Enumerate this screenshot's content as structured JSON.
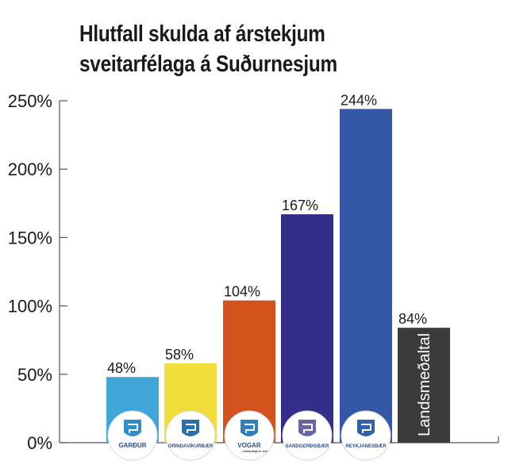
{
  "chart_data": {
    "type": "bar",
    "title": "Hlutfall skulda af árstekjum sveitarfélaga á Suðurnesjum",
    "title_line1": "Hlutfall skulda af árstekjum",
    "title_line2": "sveitarfélaga á Suðurnesjum",
    "categories": [
      "Garður",
      "Grindavíkurbær",
      "Vogar",
      "Sandgerðisbær",
      "Reykjanesbær",
      "Landsmeðaltal"
    ],
    "values": [
      48,
      58,
      104,
      167,
      244,
      84
    ],
    "value_labels": [
      "48%",
      "58%",
      "104%",
      "167%",
      "244%",
      "84%"
    ],
    "colors": [
      "#3fa6d8",
      "#f2de3a",
      "#d4521e",
      "#332e8a",
      "#3558a6",
      "#3b3b3b"
    ],
    "bar_text_label": "Landsmeðaltal",
    "ylim": [
      0,
      250
    ],
    "yticks": [
      0,
      50,
      100,
      150,
      200,
      250
    ],
    "ytick_labels": [
      "0%",
      "50%",
      "100%",
      "150%",
      "200%",
      "250%"
    ],
    "xlabel": "",
    "ylabel": "",
    "grid": false,
    "logos": [
      {
        "text": "GARÐUR",
        "icon": "gardur-crest-icon"
      },
      {
        "text": "GRINDAVÍKURBÆR",
        "icon": "grindavik-crest-icon"
      },
      {
        "text": "VOGAR",
        "subtext": "...heilsulegt er hér",
        "icon": "vogar-crest-icon"
      },
      {
        "text": "SANDGERÐISBÆR",
        "icon": "sandgerdi-crest-icon"
      },
      {
        "text": "REYKJANESBÆR",
        "icon": "reykjanes-crest-icon"
      }
    ]
  }
}
